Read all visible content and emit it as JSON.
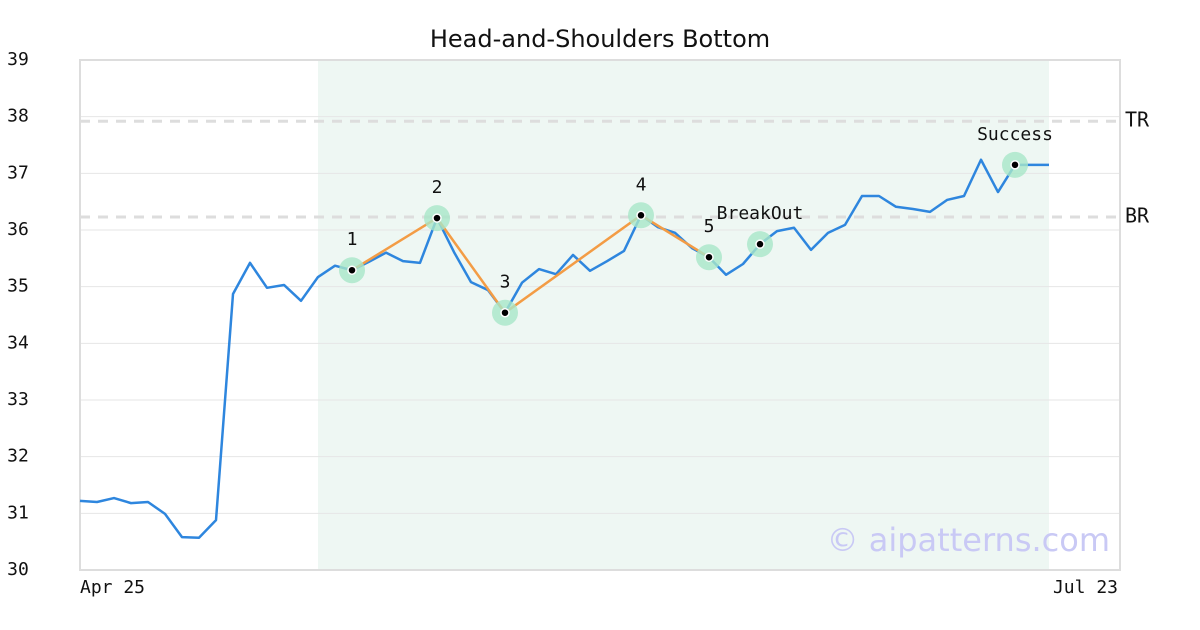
{
  "chart_data": {
    "type": "line",
    "title": "Head-and-Shoulders Bottom",
    "categories": [
      "Apr 25",
      null,
      null,
      null,
      null,
      null,
      null,
      null,
      null,
      null,
      null,
      null,
      null,
      null,
      null,
      null,
      null,
      null,
      null,
      null,
      null,
      null,
      null,
      null,
      null,
      null,
      null,
      null,
      null,
      null,
      null,
      null,
      null,
      null,
      null,
      null,
      null,
      null,
      null,
      null,
      null,
      null,
      null,
      null,
      null,
      null,
      null,
      null,
      null,
      null,
      null,
      null,
      null,
      null,
      null,
      null,
      null,
      null,
      null,
      null,
      null,
      "Jul 23"
    ],
    "series": [
      {
        "color": "#2e86de",
        "values": [
          31.22,
          31.2,
          31.27,
          31.18,
          31.2,
          30.99,
          30.58,
          30.57,
          30.88,
          34.87,
          35.42,
          34.98,
          35.03,
          34.75,
          35.17,
          35.37,
          35.29,
          35.44,
          35.6,
          35.45,
          35.42,
          36.21,
          35.61,
          35.08,
          34.94,
          34.54,
          35.07,
          35.31,
          35.22,
          35.56,
          35.28,
          35.45,
          35.63,
          36.26,
          36.05,
          35.95,
          35.68,
          35.52,
          35.21,
          35.4,
          35.75,
          35.98,
          36.04,
          35.65,
          35.95,
          36.09,
          36.6,
          36.6,
          36.41,
          36.37,
          36.32,
          36.53,
          36.6,
          37.24,
          36.67,
          37.15,
          37.15,
          37.15,
          null,
          null,
          null,
          null
        ]
      }
    ],
    "ylim": [
      30,
      39
    ],
    "yticks": [
      30,
      31,
      32,
      33,
      34,
      35,
      36,
      37,
      38,
      39
    ],
    "grid": true,
    "highlight_range": [
      14,
      57
    ],
    "highlight_color": "#eef7f3",
    "reference_lines": [
      {
        "label": "TR",
        "value": 37.92
      },
      {
        "label": "BR",
        "value": 36.23
      }
    ],
    "pattern_color": "#f39c45",
    "marker_color": "#a8e6c8",
    "pattern_points": [
      {
        "label": "1",
        "index": 16,
        "value": 35.29,
        "connect": true
      },
      {
        "label": "2",
        "index": 21,
        "value": 36.21,
        "connect": true
      },
      {
        "label": "3",
        "index": 25,
        "value": 34.54,
        "connect": true
      },
      {
        "label": "4",
        "index": 33,
        "value": 36.26,
        "connect": true
      },
      {
        "label": "5",
        "index": 37,
        "value": 35.52,
        "connect": true
      },
      {
        "label": "BreakOut",
        "index": 40,
        "value": 35.75,
        "connect": false
      },
      {
        "label": "Success",
        "index": 55,
        "value": 37.15,
        "connect": false
      }
    ],
    "watermark": "© aipatterns.com"
  }
}
